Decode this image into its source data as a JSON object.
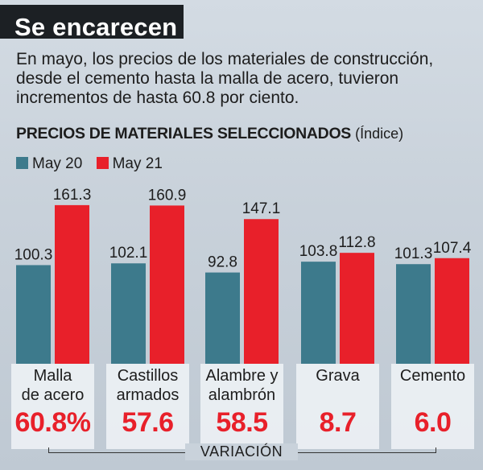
{
  "header": {
    "title": "Se encarecen",
    "description": [
      "En mayo, los precios de los materiales de construcción,",
      "desde el cemento hasta la malla de acero, tuvieron",
      "incrementos de hasta 60.8 por ciento."
    ],
    "subtitle": "PRECIOS DE MATERIALES SELECCIONADOS",
    "subtitle_unit": "(Índice)"
  },
  "chart_data": {
    "type": "bar",
    "title": "PRECIOS DE MATERIALES SELECCIONADOS",
    "ylabel": "Índice",
    "categories": [
      [
        "Malla",
        "de acero"
      ],
      [
        "Castillos",
        "armados"
      ],
      [
        "Alambre y",
        "alambrón"
      ],
      [
        "Grava"
      ],
      [
        "Cemento"
      ]
    ],
    "series": [
      {
        "name": "May 20",
        "color": "#3d7a8c",
        "values": [
          100.3,
          102.1,
          92.8,
          103.8,
          101.3
        ],
        "labels": [
          "100.3",
          "102.1",
          "92.8",
          "103.8",
          "101.3"
        ]
      },
      {
        "name": "May 21",
        "color": "#e8202a",
        "values": [
          161.3,
          160.9,
          147.1,
          112.8,
          107.4
        ],
        "labels": [
          "161.3",
          "160.9",
          "147.1",
          "112.8",
          "107.4"
        ]
      }
    ],
    "variation": [
      "60.8%",
      "57.6",
      "58.5",
      "8.7",
      "6.0"
    ],
    "variation_label": "VARIACIÓN",
    "legend": "top-left",
    "grid": false
  }
}
